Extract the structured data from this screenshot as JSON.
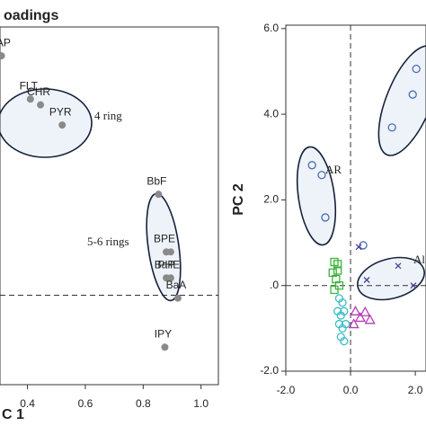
{
  "chart_data": [
    {
      "type": "scatter",
      "title": "oadings",
      "x_label": "C 1",
      "xlim": [
        0.305,
        1.06
      ],
      "ylim": [
        -0.31,
        0.93
      ],
      "xticks": [
        0.4,
        0.6,
        0.8,
        {
          "value": 1.0,
          "label": "1.0"
        }
      ],
      "yticks": [],
      "reference_y": 0,
      "annotations": [
        "4 ring",
        "5-6 rings"
      ],
      "series": [
        {
          "color": "#8a8a8a",
          "marker": "dot",
          "x": [
            0.31,
            0.41,
            0.445,
            0.52,
            0.853,
            0.88,
            0.895,
            0.88,
            0.895,
            0.92,
            0.875
          ],
          "values": [
            0.83,
            0.68,
            0.66,
            0.59,
            0.35,
            0.15,
            0.15,
            0.06,
            0.06,
            -0.01,
            -0.18
          ],
          "labels": [
            "NAP",
            "FLT",
            "CHR",
            "PYR",
            "BbF",
            "BPE",
            "",
            "BaP",
            "PHE",
            "BaA",
            "IPY"
          ]
        }
      ]
    },
    {
      "type": "scatter",
      "y_label": "PC 2",
      "xlim": [
        -2,
        2.33
      ],
      "ylim": [
        -2,
        6.08
      ],
      "xticks": [
        {
          "value": -2,
          "label": "-2.0"
        },
        {
          "value": 0,
          "label": "0.0"
        },
        {
          "value": 2,
          "label": "2.0"
        }
      ],
      "yticks": [
        {
          "value": 6,
          "label": "6.0"
        },
        {
          "value": 4,
          "label": "4.0"
        },
        {
          "value": 2,
          "label": "2.0"
        },
        {
          "value": 0,
          "label": ".0"
        },
        {
          "value": -2,
          "label": "-2.0"
        }
      ],
      "reference_x": 0,
      "reference_y": 0,
      "annotations": [
        "AR",
        "Al"
      ],
      "series": [
        {
          "color": "#4a6bb5",
          "marker": "circle",
          "x": [
            -1.19,
            -0.89,
            -0.78,
            1.28,
            1.92,
            2.03,
            0.39
          ],
          "values": [
            2.81,
            2.58,
            1.59,
            3.69,
            4.46,
            5.06,
            0.94
          ]
        },
        {
          "color": "#4a3f96",
          "marker": "cross",
          "x": [
            1.47,
            0.5,
            1.94,
            0.25
          ],
          "values": [
            0.46,
            0.13,
            0.0,
            0.9
          ]
        },
        {
          "color": "#b43cb4",
          "marker": "triangle",
          "x": [
            0.15,
            0.3,
            0.45,
            0.6,
            0.1
          ],
          "values": [
            -0.6,
            -0.75,
            -0.62,
            -0.8,
            -0.9
          ]
        },
        {
          "color": "#3cb43c",
          "marker": "square",
          "x": [
            -0.5,
            -0.4,
            -0.55,
            -0.45,
            -0.35,
            -0.5,
            -0.4
          ],
          "values": [
            0.55,
            0.5,
            0.3,
            0.15,
            0.0,
            -0.1,
            0.35
          ]
        },
        {
          "color": "#3cbcc8",
          "marker": "circle",
          "x": [
            -0.35,
            -0.25,
            -0.4,
            -0.3,
            -0.2,
            -0.35,
            -0.25,
            -0.15,
            -0.3,
            -0.2
          ],
          "values": [
            -0.3,
            -0.4,
            -0.6,
            -0.7,
            -0.6,
            -0.9,
            -1.0,
            -0.9,
            -1.2,
            -1.3
          ]
        }
      ]
    }
  ]
}
